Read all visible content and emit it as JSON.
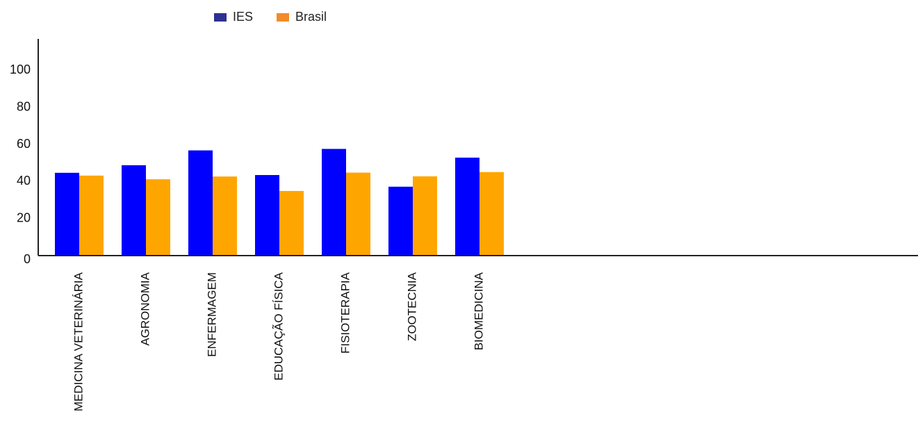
{
  "chart_data": {
    "type": "bar",
    "categories": [
      "MEDICINA VETERINÁRIA",
      "AGRONOMIA",
      "ENFERMAGEM",
      "EDUCAÇÃO FÍSICA",
      "FISIOTERAPIA",
      "ZOOTECNIA",
      "BIOMEDICINA"
    ],
    "series": [
      {
        "name": "IES",
        "color": "#0000ff",
        "legend_color": "#2e3192",
        "values": [
          44.7,
          48.8,
          56.8,
          43.5,
          57.6,
          37.2,
          52.9
        ]
      },
      {
        "name": "Brasil",
        "color": "#ffa500",
        "legend_color": "#f28c28",
        "values": [
          43.2,
          41.2,
          42.7,
          34.9,
          44.8,
          42.8,
          45.1
        ]
      }
    ],
    "y_ticks": [
      0,
      20,
      40,
      60,
      80,
      100
    ],
    "ylim": [
      0,
      117
    ],
    "grid": false,
    "legend_position": "top-left"
  }
}
